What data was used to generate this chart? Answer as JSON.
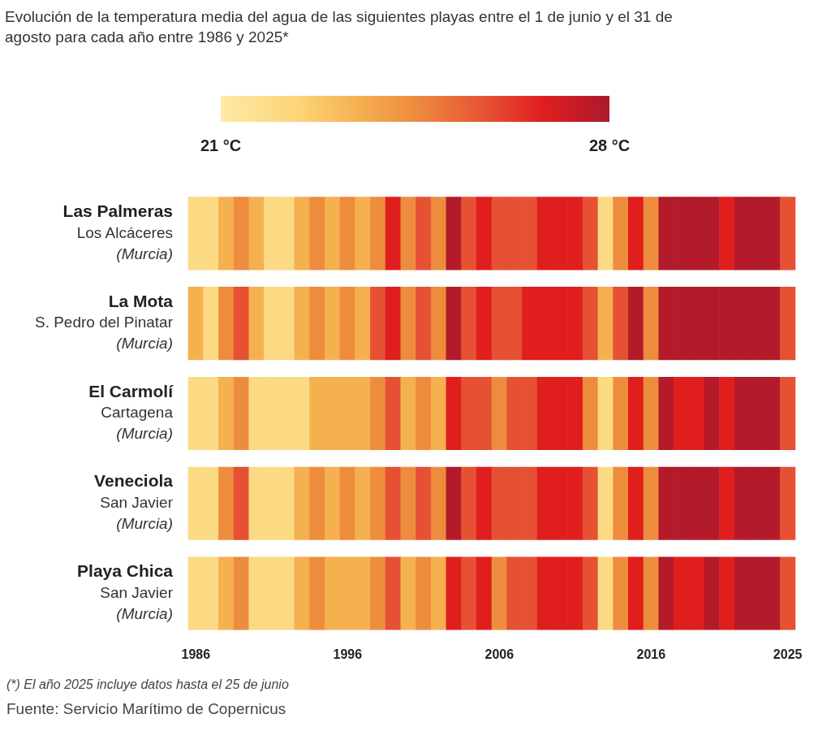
{
  "chart_data": {
    "type": "heatmap",
    "title": "Evolución de la temperatura media del agua de las siguientes playas entre el 1 de junio y el 31 de agosto para cada año entre 1986 y 2025*",
    "categories": [
      "1986",
      null,
      null,
      null,
      null,
      null,
      null,
      null,
      null,
      null,
      "1996",
      null,
      null,
      null,
      null,
      null,
      null,
      null,
      null,
      null,
      "2006",
      null,
      null,
      null,
      null,
      null,
      null,
      null,
      null,
      null,
      "2016",
      null,
      null,
      null,
      null,
      null,
      null,
      null,
      null,
      "2025"
    ],
    "y_categories": [
      "Las Palmeras\nLos Alcáceres\n(Murcia)",
      "La Mota\nS. Pedro del Pinatar\n(Murcia)",
      "El Carmolí\nCartagena\n(Murcia)",
      "Veneciola\nSan Javier\n(Murcia)",
      "Playa Chica\nSan Javier\n(Murcia)"
    ],
    "cells": [
      [
        22,
        22,
        23.5,
        24.5,
        23.5,
        22,
        22,
        23.5,
        24.5,
        23.5,
        24.5,
        23.5,
        24.5,
        26.8,
        24.5,
        25.8,
        24.5,
        27.8,
        25.8,
        26.8,
        25.8,
        25.8,
        25.8,
        26.8,
        26.8,
        26.8,
        25.8,
        22,
        24.5,
        26.8,
        24.5,
        27.8,
        27.8,
        27.8,
        27.8,
        26.8,
        27.8,
        27.8,
        27.8,
        25.8
      ],
      [
        23.5,
        22,
        24.5,
        25.8,
        23.5,
        22,
        22,
        23.5,
        24.5,
        23.5,
        24.5,
        23.5,
        25.8,
        26.8,
        24.5,
        25.8,
        24.5,
        27.8,
        25.8,
        26.8,
        25.8,
        25.8,
        26.8,
        26.8,
        26.8,
        26.8,
        25.8,
        23.5,
        25.8,
        27.8,
        24.5,
        27.8,
        27.8,
        27.8,
        27.8,
        27.8,
        27.8,
        27.8,
        27.8,
        25.8
      ],
      [
        22,
        22,
        23.5,
        24.5,
        22,
        22,
        22,
        22,
        23.5,
        23.5,
        23.5,
        23.5,
        24.5,
        25.8,
        23.5,
        24.5,
        23.5,
        26.8,
        25.8,
        25.8,
        24.5,
        25.8,
        25.8,
        26.8,
        26.8,
        26.8,
        24.5,
        22,
        24.5,
        26.8,
        24.5,
        27.8,
        26.8,
        26.8,
        27.8,
        26.8,
        27.8,
        27.8,
        27.8,
        25.8
      ],
      [
        22,
        22,
        24.5,
        25.8,
        22,
        22,
        22,
        23.5,
        24.5,
        23.5,
        24.5,
        23.5,
        24.5,
        25.8,
        24.5,
        25.8,
        24.5,
        27.8,
        25.8,
        26.8,
        25.8,
        25.8,
        25.8,
        26.8,
        26.8,
        26.8,
        25.8,
        22,
        24.5,
        26.8,
        24.5,
        27.8,
        27.8,
        27.8,
        27.8,
        26.8,
        27.8,
        27.8,
        27.8,
        25.8
      ],
      [
        22,
        22,
        23.5,
        24.5,
        22,
        22,
        22,
        23.5,
        24.5,
        23.5,
        23.5,
        23.5,
        24.5,
        25.8,
        23.5,
        24.5,
        23.5,
        26.8,
        25.8,
        26.8,
        24.5,
        25.8,
        25.8,
        26.8,
        26.8,
        26.8,
        25.8,
        22,
        24.5,
        26.8,
        24.5,
        27.8,
        26.8,
        26.8,
        27.8,
        26.8,
        27.8,
        27.8,
        27.8,
        25.8
      ]
    ],
    "clim": [
      21,
      28
    ],
    "cticks": [
      {
        "value": 21,
        "label": "21 °C"
      },
      {
        "value": 28,
        "label": "28 °C"
      }
    ],
    "annotations": [
      "(*) El año 2025 incluye datos hasta el 25 de junio",
      "Fuente: Servicio Marítimo de Copernicus"
    ]
  }
}
